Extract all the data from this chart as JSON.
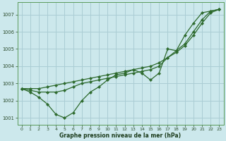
{
  "title": "Graphe pression niveau de la mer (hPa)",
  "bg_color": "#cce8ec",
  "grid_color": "#aacdd4",
  "line_color": "#2d6a2d",
  "xlim_min": -0.5,
  "xlim_max": 23.5,
  "ylim_min": 1000.6,
  "ylim_max": 1007.7,
  "yticks": [
    1001,
    1002,
    1003,
    1004,
    1005,
    1006,
    1007
  ],
  "xticks": [
    0,
    1,
    2,
    3,
    4,
    5,
    6,
    7,
    8,
    9,
    10,
    11,
    12,
    13,
    14,
    15,
    16,
    17,
    18,
    19,
    20,
    21,
    22,
    23
  ],
  "series_smooth1": [
    1002.7,
    1002.7,
    1002.7,
    1002.8,
    1002.9,
    1003.0,
    1003.1,
    1003.2,
    1003.3,
    1003.4,
    1003.5,
    1003.6,
    1003.7,
    1003.8,
    1003.9,
    1004.0,
    1004.2,
    1004.5,
    1004.8,
    1005.2,
    1005.8,
    1006.5,
    1007.1,
    1007.3
  ],
  "series_smooth2": [
    1002.7,
    1002.6,
    1002.5,
    1002.5,
    1002.5,
    1002.6,
    1002.8,
    1003.0,
    1003.1,
    1003.2,
    1003.3,
    1003.4,
    1003.5,
    1003.6,
    1003.7,
    1003.8,
    1004.0,
    1004.5,
    1004.9,
    1005.3,
    1006.0,
    1006.7,
    1007.2,
    1007.3
  ],
  "series_jagged": [
    1002.7,
    1002.5,
    1002.2,
    1001.8,
    1001.2,
    1001.0,
    1001.3,
    1002.0,
    1002.5,
    1002.8,
    1003.2,
    1003.5,
    1003.6,
    1003.8,
    1003.6,
    1003.2,
    1003.6,
    1005.0,
    1004.9,
    1005.8,
    1006.5,
    1007.1,
    1007.2,
    1007.3
  ],
  "ylabel_fontsize": 5.0,
  "xlabel_fontsize": 5.5,
  "tick_fontsize": 4.5,
  "linewidth": 0.9,
  "markersize": 2.2
}
